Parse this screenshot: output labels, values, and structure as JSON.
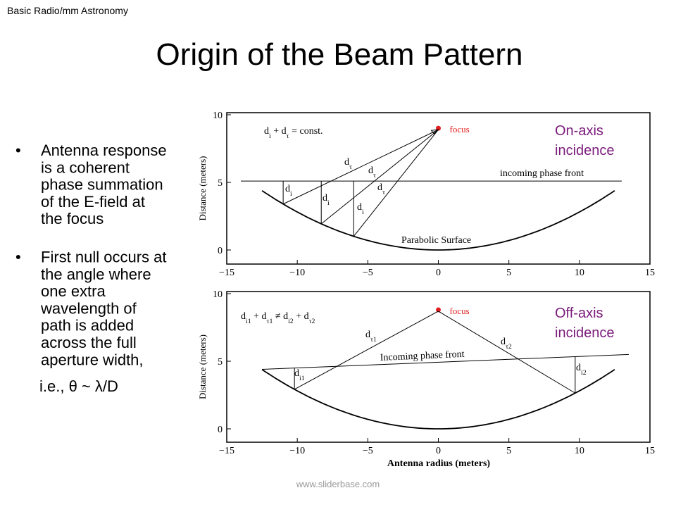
{
  "header": "Basic Radio/mm Astronomy",
  "title": "Origin of the Beam Pattern",
  "bullets": [
    [
      "Antenna response",
      "is a coherent",
      "phase summation",
      "of the E-field at",
      "the focus"
    ],
    [
      "First null occurs at",
      "the angle where",
      "one extra",
      "wavelength of",
      "path is added",
      "across the full",
      "aperture width,"
    ]
  ],
  "formula": "i.e., θ ~ λ/D",
  "figures": [
    {
      "xticks": [
        "−15",
        "−10",
        "−5",
        "0",
        "5",
        "10",
        "15"
      ],
      "yticks": [
        "0",
        "5",
        "10"
      ],
      "ylabel": "Distance (meters)",
      "equation": [
        "di",
        "+",
        "dτ",
        "=",
        "const."
      ],
      "focus": "focus",
      "incidence": [
        "On-axis",
        "incidence"
      ],
      "front": "incoming phase front",
      "surface": "Parabolic Surface",
      "paths": [
        "dτ",
        "dτ",
        "dτ",
        "di",
        "di",
        "di"
      ]
    },
    {
      "xticks": [
        "−15",
        "−10",
        "−5",
        "0",
        "5",
        "10",
        "15"
      ],
      "yticks": [
        "0",
        "5",
        "10"
      ],
      "ylabel": "Distance (meters)",
      "xlabel": "Antenna radius (meters)",
      "equation": [
        "di1",
        "+",
        "dτ1",
        "≠",
        "di2",
        "+",
        "dτ2"
      ],
      "focus": "focus",
      "incidence": [
        "Off-axis",
        "incidence"
      ],
      "front": "Incoming phase front",
      "paths": [
        "dτ1",
        "dτ2",
        "di1",
        "di2"
      ]
    }
  ],
  "footer": "www.sliderbase.com"
}
